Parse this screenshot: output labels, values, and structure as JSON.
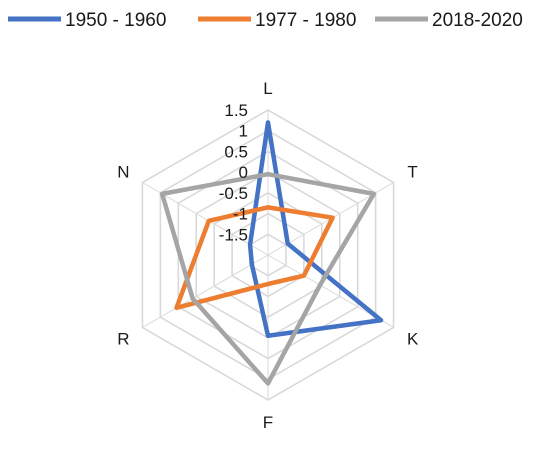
{
  "chart_data": {
    "type": "radar",
    "title": "",
    "axes": [
      "L",
      "T",
      "K",
      "F",
      "R",
      "N"
    ],
    "rlim": [
      -2,
      1.5
    ],
    "ticks": [
      "1.5",
      "1",
      "0.5",
      "0",
      "-0.5",
      "-1",
      "-1.5"
    ],
    "grid": true,
    "legend_position": "top",
    "series": [
      {
        "name": "1950 - 1960",
        "color": "#4472C4",
        "values": [
          1.2,
          -1.45,
          1.15,
          -0.05,
          -1.55,
          -1.5
        ]
      },
      {
        "name": "1977 - 1980",
        "color": "#ED7D31",
        "values": [
          -0.85,
          -0.2,
          -1.0,
          -1.3,
          0.55,
          -0.35
        ]
      },
      {
        "name": "2018-2020",
        "color": "#A5A5A5",
        "values": [
          -0.05,
          0.95,
          -0.55,
          1.1,
          0.1,
          0.95
        ]
      }
    ]
  }
}
